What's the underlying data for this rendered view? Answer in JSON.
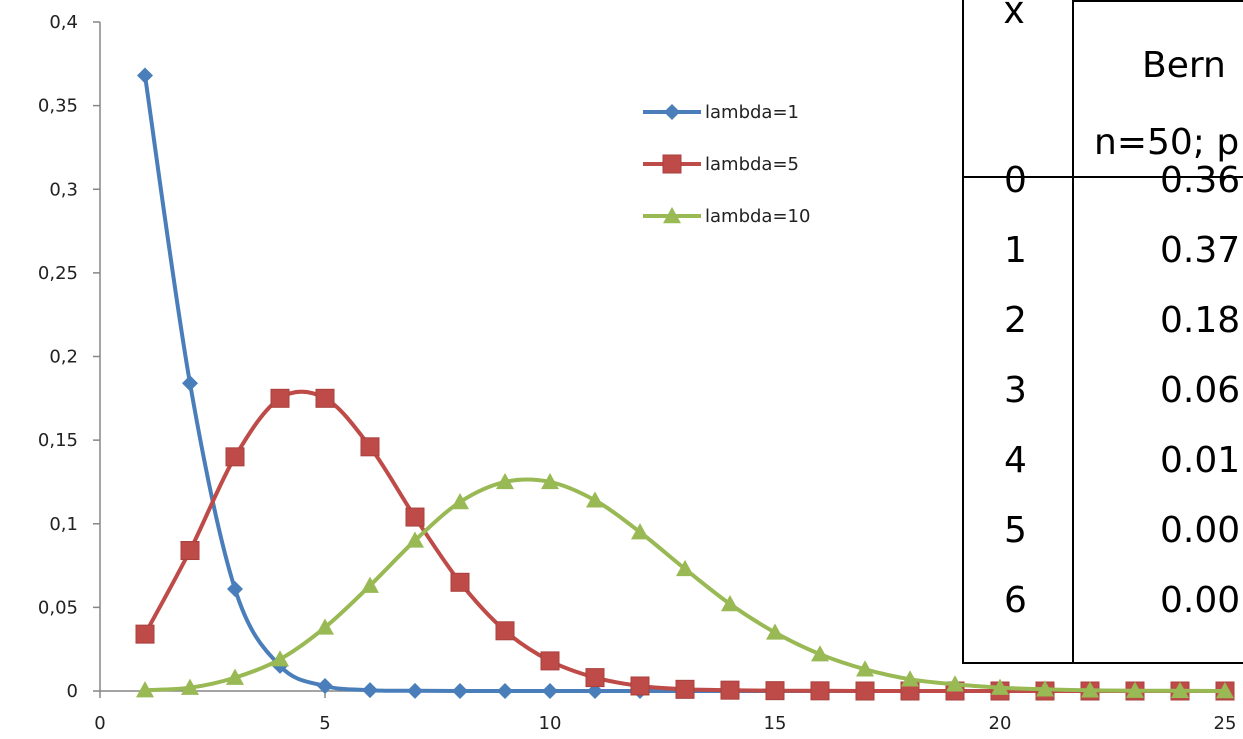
{
  "chart_data": {
    "type": "line",
    "xlim": [
      0,
      25
    ],
    "ylim": [
      0,
      0.4
    ],
    "x_ticks": [
      "0",
      "5",
      "10",
      "15",
      "20",
      "25"
    ],
    "y_ticks": [
      "0",
      "0,05",
      "0,1",
      "0,15",
      "0,2",
      "0,25",
      "0,3",
      "0,35",
      "0,4"
    ],
    "legend_position": "top-center",
    "grid": false,
    "smooth": true,
    "x": [
      1,
      2,
      3,
      4,
      5,
      6,
      7,
      8,
      9,
      10,
      11,
      12,
      13,
      14,
      15,
      16,
      17,
      18,
      19,
      20,
      21,
      22,
      23,
      24,
      25
    ],
    "series": [
      {
        "name": "lambda=1",
        "color": "#4a7ebb",
        "marker": "diamond",
        "values": [
          0.368,
          0.184,
          0.061,
          0.015,
          0.003,
          0.0005,
          0.0001,
          0,
          0,
          0,
          0,
          0,
          0,
          0,
          0,
          0,
          0,
          0,
          0,
          0,
          0,
          0,
          0,
          0,
          0
        ]
      },
      {
        "name": "lambda=5",
        "color": "#be4b48",
        "marker": "square",
        "values": [
          0.034,
          0.084,
          0.14,
          0.175,
          0.175,
          0.146,
          0.104,
          0.065,
          0.036,
          0.018,
          0.008,
          0.003,
          0.001,
          0.0005,
          0.0002,
          0.0001,
          0,
          0,
          0,
          0,
          0,
          0,
          0,
          0,
          0
        ]
      },
      {
        "name": "lambda=10",
        "color": "#98b954",
        "marker": "triangle",
        "values": [
          0.0005,
          0.002,
          0.008,
          0.019,
          0.038,
          0.063,
          0.09,
          0.113,
          0.125,
          0.125,
          0.114,
          0.095,
          0.073,
          0.052,
          0.035,
          0.022,
          0.013,
          0.007,
          0.004,
          0.002,
          0.001,
          0.0004,
          0.0002,
          0.0001,
          0
        ]
      }
    ]
  },
  "table": {
    "x_header": "x",
    "header_line1": "Bern",
    "header_line2": "n=50; p",
    "rows": [
      {
        "x": "0",
        "p": "0.36"
      },
      {
        "x": "1",
        "p": "0.37"
      },
      {
        "x": "2",
        "p": "0.18"
      },
      {
        "x": "3",
        "p": "0.06"
      },
      {
        "x": "4",
        "p": "0.01"
      },
      {
        "x": "5",
        "p": "0.00"
      },
      {
        "x": "6",
        "p": "0.00"
      }
    ]
  }
}
